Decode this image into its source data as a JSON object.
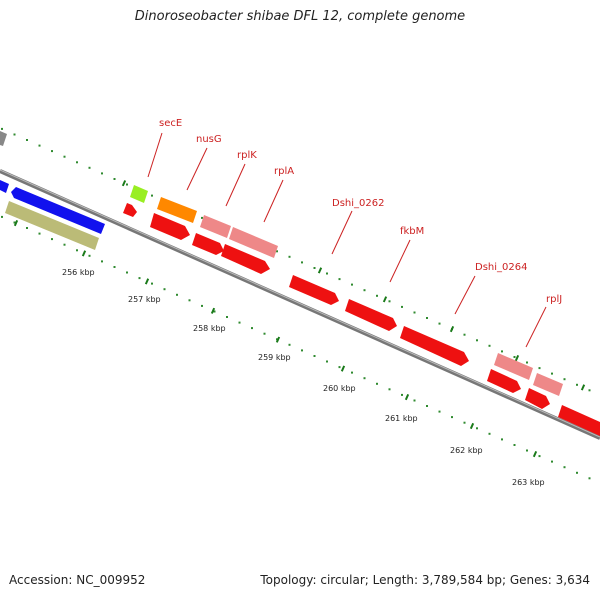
{
  "title": "Dinoroseobacter shibae DFL 12, complete genome",
  "accession": "Accession: NC_009952",
  "topology": "Topology: circular; Length: 3,789,584 bp; Genes: 3,634",
  "colors": {
    "backbone": "#777777",
    "tick_major": "#1a7a1a",
    "tick_minor": "#2f8a2f",
    "label": "#cc2222",
    "gene_red": "#ee1111",
    "gene_pink": "#ee8888",
    "gene_orange": "#ff8800",
    "gene_green": "#99ee22",
    "gene_blue": "#1111ee",
    "gene_khaki": "#bbbb77",
    "gene_gray": "#888888"
  },
  "scale_labels": [
    "256 kbp",
    "257 kbp",
    "258 kbp",
    "259 kbp",
    "260 kbp",
    "261 kbp",
    "262 kbp",
    "263 kbp"
  ],
  "gene_labels": [
    "secE",
    "nusG",
    "rplK",
    "rplA",
    "Dshi_0262",
    "fkbM",
    "Dshi_0264",
    "rplJ"
  ]
}
